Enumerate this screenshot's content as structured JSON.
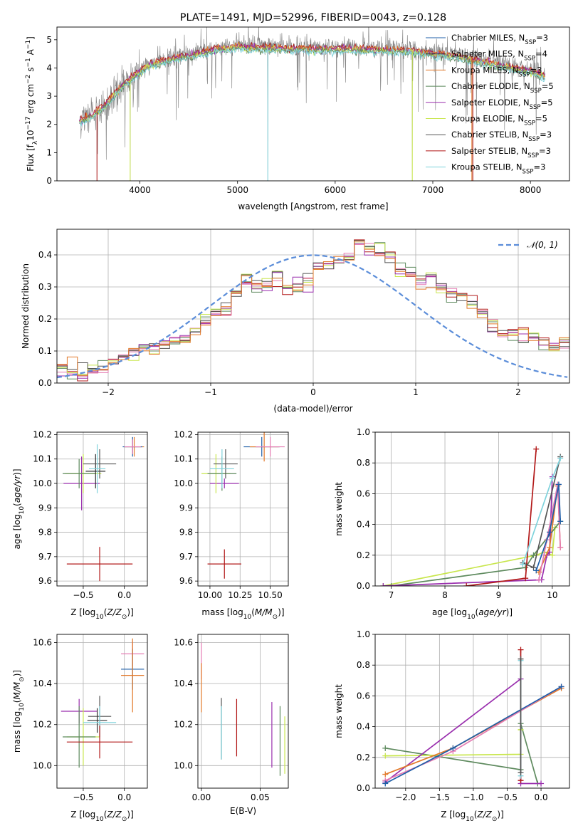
{
  "colors": {
    "chabrier_miles": "#1f5fa8",
    "salpeter_miles": "#303030",
    "kroupa_miles": "#e2792a",
    "chabrier_elodie": "#5e8a5e",
    "salpeter_elodie": "#9a2fae",
    "kroupa_elodie": "#c8e64c",
    "chabrier_stelib": "#555555",
    "salpeter_stelib": "#b21818",
    "kroupa_stelib": "#7fd3dc",
    "pink": "#e57cb3",
    "gauss": "#5b8dd9",
    "grey": "#808080",
    "grid": "#b0b0b0"
  },
  "chart_data": [
    {
      "id": "spectrum",
      "type": "line",
      "title": "PLATE=1491, MJD=52996, FIBERID=0043, z=0.128",
      "xlabel": "wavelength [Angstrom, rest frame]",
      "ylabel_parts": [
        "Flux [f",
        "λ",
        "10",
        "−17",
        " erg cm",
        "−2",
        " s",
        "−1",
        " A",
        "−1",
        "]"
      ],
      "xlim": [
        3150,
        8400
      ],
      "ylim": [
        0,
        5.45
      ],
      "xticks": [
        4000,
        5000,
        6000,
        7000,
        8000
      ],
      "yticks": [
        0,
        1,
        2,
        3,
        4,
        5
      ],
      "grid": false,
      "legend_position": "top-right",
      "legend": [
        {
          "name": "Chabrier MILES",
          "sub": "SSP",
          "eq": "=3",
          "color": "#1f5fa8"
        },
        {
          "name": "Salpeter MILES",
          "sub": "SSP",
          "eq": "=4",
          "color": "#303030"
        },
        {
          "name": "Kroupa MILES",
          "sub": "SSP",
          "eq": "=3",
          "color": "#e2792a"
        },
        {
          "name": "Chabrier ELODIE",
          "sub": "SSP",
          "eq": "=5",
          "color": "#5e8a5e"
        },
        {
          "name": "Salpeter ELODIE",
          "sub": "SSP",
          "eq": "=5",
          "color": "#9a2fae"
        },
        {
          "name": "Kroupa ELODIE",
          "sub": "SSP",
          "eq": "=5",
          "color": "#c8e64c"
        },
        {
          "name": "Chabrier STELIB",
          "sub": "SSP",
          "eq": "=3",
          "color": "#555555"
        },
        {
          "name": "Salpeter STELIB",
          "sub": "SSP",
          "eq": "=3",
          "color": "#b21818"
        },
        {
          "name": "Kroupa STELIB",
          "sub": "SSP",
          "eq": "=3",
          "color": "#7fd3dc"
        }
      ],
      "continuum": {
        "x": [
          3380,
          3500,
          3650,
          3800,
          3950,
          4100,
          4300,
          4600,
          4800,
          5000,
          5200,
          5400,
          5600,
          5800,
          6000,
          6200,
          6500,
          6800,
          7000,
          7200,
          7400,
          7600,
          7800,
          8000,
          8150
        ],
        "y": [
          2.15,
          2.35,
          2.75,
          3.35,
          3.8,
          4.15,
          4.35,
          4.55,
          4.72,
          4.8,
          4.78,
          4.75,
          4.72,
          4.72,
          4.72,
          4.72,
          4.7,
          4.65,
          4.55,
          4.5,
          4.35,
          4.2,
          4.05,
          3.95,
          3.75
        ]
      },
      "sharp_dips": [
        {
          "x": 3560,
          "y": 0
        },
        {
          "x": 3900,
          "y": 0
        },
        {
          "x": 5310,
          "y": 0
        },
        {
          "x": 6790,
          "y": 0
        },
        {
          "x": 7400,
          "y": 0
        }
      ]
    },
    {
      "id": "residuals",
      "type": "line",
      "xlabel": "(data-model)/error",
      "ylabel": "Normed distribution",
      "xlim": [
        -2.5,
        2.5
      ],
      "ylim": [
        0,
        0.48
      ],
      "xticks": [
        -2,
        -1,
        0,
        1,
        2
      ],
      "xtick_labels": [
        "−2",
        "−1",
        "0",
        "1",
        "2"
      ],
      "yticks": [
        0,
        0.1,
        0.2,
        0.3,
        0.4
      ],
      "ytick_labels": [
        "0.0",
        "0.1",
        "0.2",
        "0.3",
        "0.4"
      ],
      "grid": true,
      "legend_position": "top-right",
      "legend_label": "𝒩(0, 1)",
      "hist_bin_width": 0.1,
      "hist_base": [
        0.035,
        0.03,
        0.035,
        0.04,
        0.05,
        0.065,
        0.08,
        0.095,
        0.1,
        0.11,
        0.12,
        0.13,
        0.14,
        0.16,
        0.19,
        0.22,
        0.24,
        0.28,
        0.32,
        0.3,
        0.31,
        0.33,
        0.3,
        0.3,
        0.32,
        0.36,
        0.37,
        0.38,
        0.39,
        0.44,
        0.42,
        0.41,
        0.39,
        0.36,
        0.34,
        0.32,
        0.33,
        0.3,
        0.28,
        0.27,
        0.24,
        0.22,
        0.18,
        0.16,
        0.15,
        0.14,
        0.15,
        0.12,
        0.11,
        0.12,
        0.09,
        0.08,
        0.07,
        0.06,
        0.06,
        0.055,
        0.05,
        0.04,
        0.045,
        0.04
      ]
    },
    {
      "id": "age-vs-Z",
      "type": "scatter",
      "xlabel_parts": [
        "Z [log",
        "10",
        "(",
        "Z/Z",
        "⊙",
        ")]"
      ],
      "ylabel_parts": [
        "age  [log",
        "10",
        "(",
        "age/yr",
        ")]"
      ],
      "xlim": [
        -0.82,
        0.28
      ],
      "ylim": [
        9.58,
        10.21
      ],
      "xticks": [
        -0.5,
        0.0
      ],
      "xtick_labels": [
        "−0.5",
        "0.0"
      ],
      "yticks": [
        9.6,
        9.7,
        9.8,
        9.9,
        10.0,
        10.1,
        10.2
      ],
      "ytick_labels": [
        "9.6",
        "9.7",
        "9.8",
        "9.9",
        "10.0",
        "10.1",
        "10.2"
      ],
      "grid": true,
      "points": [
        {
          "x": -0.52,
          "xerr": 0.22,
          "y": 10.0,
          "yerr": 0.11,
          "color": "#9a2fae"
        },
        {
          "x": -0.5,
          "xerr": 0.22,
          "y": 10.04,
          "yerr": 0.08,
          "color": "#c8e64c"
        },
        {
          "x": -0.55,
          "xerr": 0.2,
          "y": 10.04,
          "yerr": 0.06,
          "color": "#5e8a5e"
        },
        {
          "x": -0.35,
          "xerr": 0.12,
          "y": 10.05,
          "yerr": 0.07,
          "color": "#303030"
        },
        {
          "x": -0.3,
          "xerr": 0.2,
          "y": 10.08,
          "yerr": 0.06,
          "color": "#555555"
        },
        {
          "x": -0.33,
          "xerr": 0.1,
          "y": 10.06,
          "yerr": 0.1,
          "color": "#7fd3dc"
        },
        {
          "x": -0.3,
          "xerr": 0.4,
          "y": 9.67,
          "yerr": 0.07,
          "color": "#b21818"
        },
        {
          "x": 0.12,
          "xerr": 0.12,
          "y": 10.15,
          "yerr": 0.04,
          "color": "#e2792a"
        },
        {
          "x": 0.1,
          "xerr": 0.12,
          "y": 10.15,
          "yerr": 0.04,
          "color": "#1f5fa8"
        },
        {
          "x": 0.1,
          "xerr": 0.1,
          "y": 10.15,
          "yerr": 0.03,
          "color": "#e57cb3"
        }
      ]
    },
    {
      "id": "age-vs-mass",
      "type": "scatter",
      "xlabel_parts": [
        "mass [log",
        "10",
        "(",
        "M/M",
        "⊙",
        ")]"
      ],
      "xlim": [
        9.9,
        10.65
      ],
      "ylim": [
        9.58,
        10.21
      ],
      "xticks": [
        10.0,
        10.25,
        10.5
      ],
      "xtick_labels": [
        "10.00",
        "10.25",
        "10.50"
      ],
      "yticks": [
        9.6,
        9.7,
        9.8,
        9.9,
        10.0,
        10.1,
        10.2
      ],
      "ytick_labels": [
        "9.6",
        "9.7",
        "9.8",
        "9.9",
        "10.0",
        "10.1",
        "10.2"
      ],
      "grid": true,
      "points": [
        {
          "x": 10.12,
          "xerr": 0.12,
          "y": 10.0,
          "yerr": 0.02,
          "color": "#9a2fae"
        },
        {
          "x": 10.05,
          "xerr": 0.12,
          "y": 10.04,
          "yerr": 0.08,
          "color": "#c8e64c"
        },
        {
          "x": 10.1,
          "xerr": 0.12,
          "y": 10.04,
          "yerr": 0.07,
          "color": "#5e8a5e"
        },
        {
          "x": 10.13,
          "xerr": 0.1,
          "y": 10.08,
          "yerr": 0.06,
          "color": "#555555"
        },
        {
          "x": 10.1,
          "xerr": 0.1,
          "y": 10.06,
          "yerr": 0.08,
          "color": "#7fd3dc"
        },
        {
          "x": 10.12,
          "xerr": 0.14,
          "y": 9.67,
          "yerr": 0.06,
          "color": "#b21818"
        },
        {
          "x": 10.43,
          "xerr": 0.15,
          "y": 10.15,
          "yerr": 0.04,
          "color": "#1f5fa8"
        },
        {
          "x": 10.45,
          "xerr": 0.12,
          "y": 10.15,
          "yerr": 0.06,
          "color": "#e2792a"
        },
        {
          "x": 10.5,
          "xerr": 0.12,
          "y": 10.15,
          "yerr": 0.04,
          "color": "#e57cb3"
        }
      ]
    },
    {
      "id": "massweight-vs-age",
      "type": "line",
      "xlabel_parts": [
        "age  [log",
        "10",
        "(",
        "age/yr",
        ")]"
      ],
      "ylabel": "mass weight",
      "xlim": [
        6.7,
        10.32
      ],
      "ylim": [
        0,
        1.0
      ],
      "xticks": [
        7,
        8,
        9,
        10
      ],
      "xtick_labels": [
        "7",
        "8",
        "9",
        "10"
      ],
      "yticks": [
        0,
        0.2,
        0.4,
        0.6,
        0.8,
        1.0
      ],
      "ytick_labels": [
        "0.0",
        "0.2",
        "0.4",
        "0.6",
        "0.8",
        "1.0"
      ],
      "grid": true,
      "series": [
        {
          "color": "#c8e64c",
          "x": [
            6.85,
            9.7,
            9.85,
            10.0,
            10.05
          ],
          "y": [
            0.0,
            0.2,
            0.22,
            0.2,
            0.38
          ]
        },
        {
          "color": "#5e8a5e",
          "x": [
            7.0,
            9.5,
            9.65,
            10.15
          ],
          "y": [
            0.0,
            0.12,
            0.2,
            0.42
          ]
        },
        {
          "color": "#9a2fae",
          "x": [
            6.85,
            9.8,
            9.9,
            9.95,
            10.0
          ],
          "y": [
            0.0,
            0.04,
            0.2,
            0.22,
            0.71
          ]
        },
        {
          "color": "#b21818",
          "x": [
            8.4,
            9.5,
            9.7
          ],
          "y": [
            0.0,
            0.05,
            0.89
          ]
        },
        {
          "color": "#555555",
          "x": [
            9.45,
            9.65,
            10.15
          ],
          "y": [
            0.15,
            0.12,
            0.84
          ]
        },
        {
          "color": "#7fd3dc",
          "x": [
            9.45,
            10.0,
            10.15
          ],
          "y": [
            0.14,
            0.7,
            0.83
          ]
        },
        {
          "color": "#e2792a",
          "x": [
            9.75,
            9.95,
            10.1,
            10.15
          ],
          "y": [
            0.09,
            0.25,
            0.65,
            0.25
          ]
        },
        {
          "color": "#e57cb3",
          "x": [
            9.75,
            9.9,
            10.1,
            10.15
          ],
          "y": [
            0.04,
            0.3,
            0.66,
            0.25
          ]
        },
        {
          "color": "#1f5fa8",
          "x": [
            9.7,
            9.95,
            10.12,
            10.15
          ],
          "y": [
            0.1,
            0.35,
            0.66,
            0.42
          ]
        }
      ]
    },
    {
      "id": "mass-vs-Z",
      "type": "scatter",
      "xlabel_parts": [
        "Z [log",
        "10",
        "(",
        "Z/Z",
        "⊙",
        ")]"
      ],
      "ylabel_parts": [
        "mass [log",
        "10",
        "(",
        "M/M",
        "⊙",
        ")]"
      ],
      "xlim": [
        -0.82,
        0.28
      ],
      "ylim": [
        9.89,
        10.64
      ],
      "xticks": [
        -0.5,
        0.0
      ],
      "xtick_labels": [
        "−0.5",
        "0.0"
      ],
      "yticks": [
        10.0,
        10.2,
        10.4,
        10.6
      ],
      "ytick_labels": [
        "10.0",
        "10.2",
        "10.4",
        "10.6"
      ],
      "grid": true,
      "points": [
        {
          "x": -0.55,
          "xerr": 0.22,
          "y": 10.265,
          "yerr": 0.06,
          "color": "#9a2fae"
        },
        {
          "x": -0.5,
          "xerr": 0.2,
          "y": 10.14,
          "yerr": 0.14,
          "color": "#c8e64c"
        },
        {
          "x": -0.55,
          "xerr": 0.2,
          "y": 10.14,
          "yerr": 0.15,
          "color": "#5e8a5e"
        },
        {
          "x": -0.3,
          "xerr": 0.14,
          "y": 10.24,
          "yerr": 0.1,
          "color": "#555555"
        },
        {
          "x": -0.33,
          "xerr": 0.12,
          "y": 10.22,
          "yerr": 0.06,
          "color": "#303030"
        },
        {
          "x": -0.3,
          "xerr": 0.2,
          "y": 10.21,
          "yerr": 0.08,
          "color": "#7fd3dc"
        },
        {
          "x": -0.3,
          "xerr": 0.4,
          "y": 10.115,
          "yerr": 0.08,
          "color": "#b21818"
        },
        {
          "x": 0.1,
          "xerr": 0.14,
          "y": 10.545,
          "yerr": 0.06,
          "color": "#e57cb3"
        },
        {
          "x": 0.1,
          "xerr": 0.14,
          "y": 10.47,
          "yerr": 0.1,
          "color": "#1f5fa8"
        },
        {
          "x": 0.1,
          "xerr": 0.14,
          "y": 10.44,
          "yerr": 0.18,
          "color": "#e2792a"
        }
      ]
    },
    {
      "id": "mass-vs-EBV",
      "type": "scatter",
      "xlabel": "E(B-V)",
      "xlim": [
        -0.003,
        0.074
      ],
      "ylim": [
        9.89,
        10.64
      ],
      "xticks": [
        0.0,
        0.05
      ],
      "xtick_labels": [
        "0.00",
        "0.05"
      ],
      "yticks": [
        10.0,
        10.2,
        10.4,
        10.6
      ],
      "ytick_labels": [
        "10.0",
        "10.2",
        "10.4",
        "10.6"
      ],
      "grid": true,
      "points": [
        {
          "x": 0.0,
          "y": 10.51,
          "yerr": 0.09,
          "color": "#e57cb3"
        },
        {
          "x": 0.0,
          "y": 10.38,
          "yerr": 0.12,
          "color": "#e2792a"
        },
        {
          "x": 0.017,
          "y": 10.18,
          "yerr": 0.15,
          "color": "#555555"
        },
        {
          "x": 0.017,
          "y": 10.16,
          "yerr": 0.13,
          "color": "#7fd3dc"
        },
        {
          "x": 0.03,
          "y": 10.185,
          "yerr": 0.14,
          "color": "#b21818"
        },
        {
          "x": 0.06,
          "y": 10.15,
          "yerr": 0.16,
          "color": "#9a2fae"
        },
        {
          "x": 0.067,
          "y": 10.12,
          "yerr": 0.17,
          "color": "#5e8a5e"
        },
        {
          "x": 0.071,
          "y": 10.1,
          "yerr": 0.14,
          "color": "#c8e64c"
        }
      ]
    },
    {
      "id": "massweight-vs-Z",
      "type": "line",
      "xlabel_parts": [
        "Z [log",
        "10",
        "(",
        "Z/Z",
        "⊙",
        ")]"
      ],
      "ylabel": "mass weight",
      "xlim": [
        -2.45,
        0.42
      ],
      "ylim": [
        0,
        1.0
      ],
      "xticks": [
        -2.0,
        -1.5,
        -1.0,
        -0.5,
        0.0
      ],
      "xtick_labels": [
        "−2.0",
        "−1.5",
        "−1.0",
        "−0.5",
        "0.0"
      ],
      "yticks": [
        0,
        0.2,
        0.4,
        0.6,
        0.8,
        1.0
      ],
      "ytick_labels": [
        "0.0",
        "0.2",
        "0.4",
        "0.6",
        "0.8",
        "1.0"
      ],
      "grid": true,
      "series": [
        {
          "color": "#5e8a5e",
          "x": [
            -2.3,
            -0.3,
            -0.3,
            -0.05
          ],
          "y": [
            0.26,
            0.12,
            0.42,
            0.03
          ]
        },
        {
          "color": "#c8e64c",
          "x": [
            -2.3,
            -0.3,
            -0.3,
            -0.3
          ],
          "y": [
            0.21,
            0.22,
            0.38,
            0.38
          ]
        },
        {
          "color": "#9a2fae",
          "x": [
            -2.3,
            -0.3,
            -0.3,
            0.0
          ],
          "y": [
            0.04,
            0.71,
            0.03,
            0.03
          ]
        },
        {
          "color": "#e2792a",
          "x": [
            -2.3,
            -1.3,
            0.3
          ],
          "y": [
            0.09,
            0.26,
            0.65
          ]
        },
        {
          "color": "#e57cb3",
          "x": [
            -2.3,
            -1.3,
            0.3
          ],
          "y": [
            0.05,
            0.24,
            0.66
          ]
        },
        {
          "color": "#1f5fa8",
          "x": [
            -2.3,
            -1.3,
            0.3
          ],
          "y": [
            0.03,
            0.26,
            0.66
          ]
        },
        {
          "color": "#b21818",
          "x": [
            -0.3,
            -0.3
          ],
          "y": [
            0.9,
            0.05
          ]
        },
        {
          "color": "#7fd3dc",
          "x": [
            -0.3,
            -0.3
          ],
          "y": [
            0.83,
            0.08
          ]
        },
        {
          "color": "#555555",
          "x": [
            -0.3,
            -0.3
          ],
          "y": [
            0.84,
            0.1
          ]
        }
      ]
    }
  ]
}
